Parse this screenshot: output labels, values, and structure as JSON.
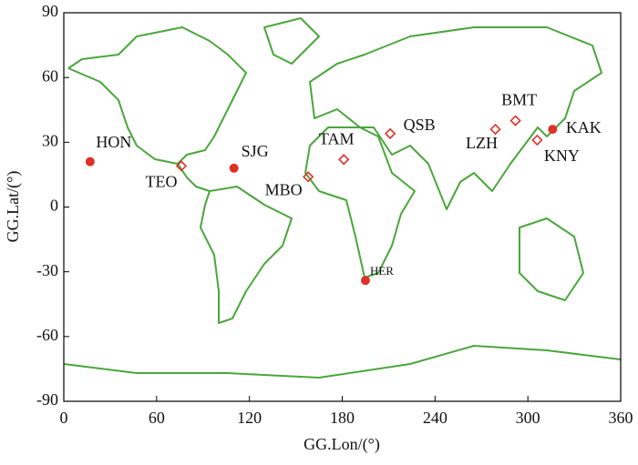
{
  "chart_data": {
    "type": "scatter",
    "xlabel": "GG.Lon/(°)",
    "ylabel": "GG.Lat/(°)",
    "xlim": [
      0,
      360
    ],
    "xticks": [
      0,
      60,
      120,
      180,
      240,
      300,
      360
    ],
    "ylim": [
      -90,
      90
    ],
    "yticks": [
      -90,
      -60,
      -30,
      0,
      30,
      60,
      90
    ],
    "series": [
      {
        "marker": "circle",
        "color": "#e0302a",
        "labels": [
          "HON",
          "SJG",
          "HER",
          "KAK"
        ],
        "x": [
          17,
          110,
          195,
          316
        ],
        "y": [
          21,
          18,
          -34,
          36
        ]
      },
      {
        "marker": "open-diamond",
        "color": "#e0302a",
        "labels": [
          "TEO",
          "MBO",
          "TAM",
          "QSB",
          "LZH",
          "BMT",
          "KNY"
        ],
        "x": [
          76,
          158,
          181,
          211,
          279,
          292,
          306
        ],
        "y": [
          19,
          14,
          22,
          34,
          36,
          40,
          31
        ]
      }
    ]
  }
}
